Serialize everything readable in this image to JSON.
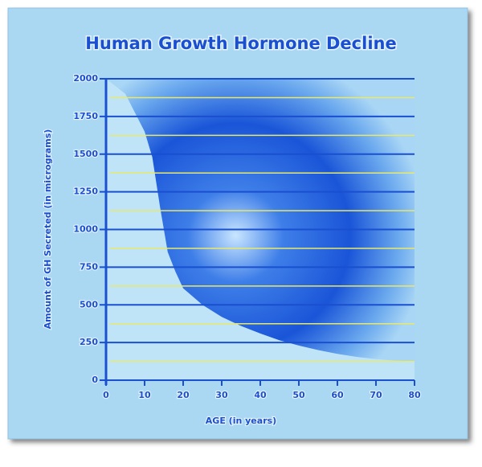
{
  "chart_data": {
    "type": "area",
    "title": "Human Growth Hormone Decline",
    "x_label": "AGE (in years)",
    "y_label": "Amount of GH Secreted (in micrograms)",
    "x": [
      0,
      5,
      10,
      12,
      14,
      16,
      18,
      20,
      25,
      30,
      35,
      40,
      45,
      50,
      55,
      60,
      65,
      70,
      75,
      80
    ],
    "values": [
      2000,
      1900,
      1650,
      1480,
      1150,
      850,
      720,
      610,
      500,
      420,
      360,
      310,
      265,
      230,
      200,
      175,
      155,
      140,
      130,
      125
    ],
    "color": "#bfe4f7",
    "xlim": [
      0,
      80
    ],
    "xticks": [
      0,
      10,
      20,
      30,
      40,
      50,
      60,
      70,
      80
    ],
    "ylim": [
      0,
      2000
    ],
    "yticks": [
      0,
      250,
      500,
      750,
      1000,
      1250,
      1500,
      1750,
      2000
    ],
    "grid": true,
    "grid_color": "#1a4fd0",
    "minor_grid": [
      125,
      375,
      625,
      875,
      1125,
      1375,
      1625,
      1875
    ],
    "minor_grid_color": "#e8e86a"
  }
}
